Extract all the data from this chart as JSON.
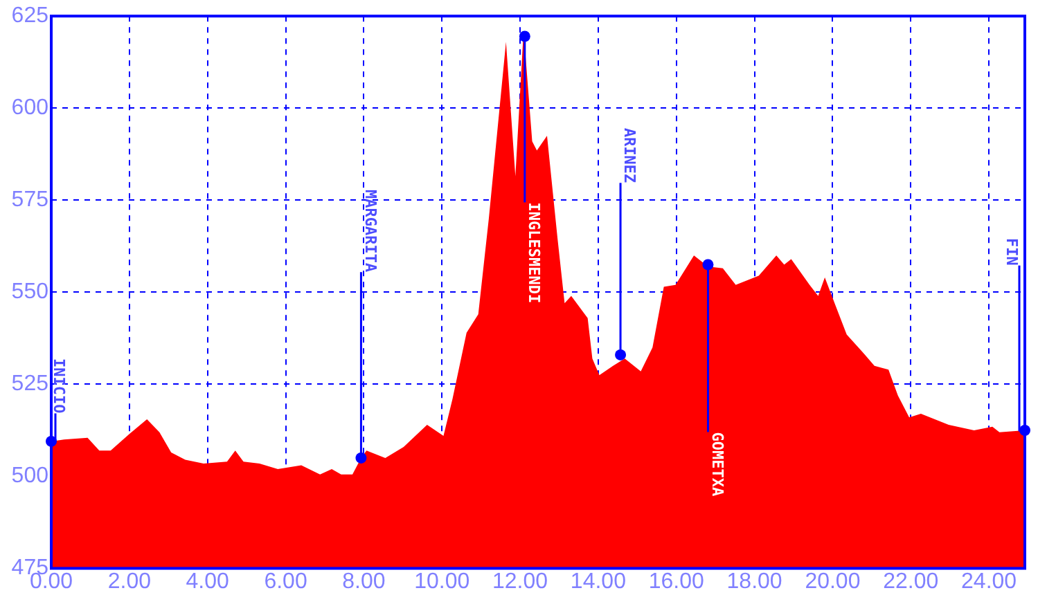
{
  "chart_data": {
    "type": "area",
    "x": [
      0,
      0.33,
      0.93,
      1.23,
      1.52,
      2,
      2.45,
      2.77,
      3.07,
      3.43,
      3.9,
      4.5,
      4.71,
      4.92,
      5.33,
      5.8,
      6.4,
      6.88,
      7.18,
      7.42,
      7.71,
      7.93,
      8.07,
      8.55,
      9.02,
      9.62,
      10.04,
      10.27,
      10.63,
      10.93,
      11.2,
      11.64,
      11.88,
      12.09,
      12.31,
      12.43,
      12.69,
      12.96,
      13.14,
      13.31,
      13.73,
      13.85,
      14.03,
      14.38,
      14.68,
      15.09,
      15.39,
      15.68,
      15.98,
      16.45,
      16.81,
      17.19,
      17.52,
      18.11,
      18.56,
      18.76,
      18.94,
      19.41,
      19.63,
      19.8,
      20.07,
      20.36,
      20.83,
      21.07,
      21.43,
      21.67,
      21.96,
      22.26,
      22.97,
      23.62,
      24.09,
      24.27,
      24.92
    ],
    "series": [
      {
        "color": "#ff0000",
        "values": [
          509.5,
          510,
          510.5,
          507,
          507,
          511.5,
          515.5,
          512,
          506.5,
          504.5,
          503.5,
          504,
          507,
          504,
          503.5,
          502,
          503,
          500.5,
          502,
          500.5,
          500.5,
          505,
          507,
          505,
          508,
          514,
          511,
          521,
          539,
          544,
          570,
          618,
          581.5,
          621,
          591,
          588.5,
          592.5,
          564.5,
          547,
          549,
          543,
          532,
          527.5,
          530,
          532,
          528.5,
          535,
          551.5,
          552,
          560,
          557,
          556.5,
          552,
          554.5,
          560,
          557.5,
          559,
          552,
          549,
          554,
          546.5,
          538.5,
          533,
          530,
          529,
          522,
          516,
          517,
          514,
          512.5,
          513.5,
          512,
          512.5
        ]
      }
    ],
    "xlim": [
      0,
      24.92
    ],
    "xticks": [
      {
        "value": 0,
        "label": "0.00"
      },
      {
        "value": 2,
        "label": "2.00"
      },
      {
        "value": 4,
        "label": "4.00"
      },
      {
        "value": 6,
        "label": "6.00"
      },
      {
        "value": 8,
        "label": "8.00"
      },
      {
        "value": 10,
        "label": "10.00"
      },
      {
        "value": 12,
        "label": "12.00"
      },
      {
        "value": 14,
        "label": "14.00"
      },
      {
        "value": 16,
        "label": "16.00"
      },
      {
        "value": 18,
        "label": "18.00"
      },
      {
        "value": 20,
        "label": "20.00"
      },
      {
        "value": 22,
        "label": "22.00"
      },
      {
        "value": 24,
        "label": "24.00"
      }
    ],
    "ylim": [
      475,
      625
    ],
    "yticks": [
      475,
      500,
      525,
      550,
      575,
      600,
      625
    ],
    "grid": true,
    "annotations": [
      {
        "text": "INICIO",
        "x": 0,
        "y": 509.5
      },
      {
        "text": "MARGARITA",
        "x": 7.93,
        "y": 505
      },
      {
        "text": "INGLESMENDI",
        "x": 12.12,
        "y": 619.5
      },
      {
        "text": "ARINEZ",
        "x": 14.57,
        "y": 533
      },
      {
        "text": "GOMETXA",
        "x": 16.81,
        "y": 557.5
      },
      {
        "text": "FIN",
        "x": 24.92,
        "y": 512.5
      }
    ]
  }
}
